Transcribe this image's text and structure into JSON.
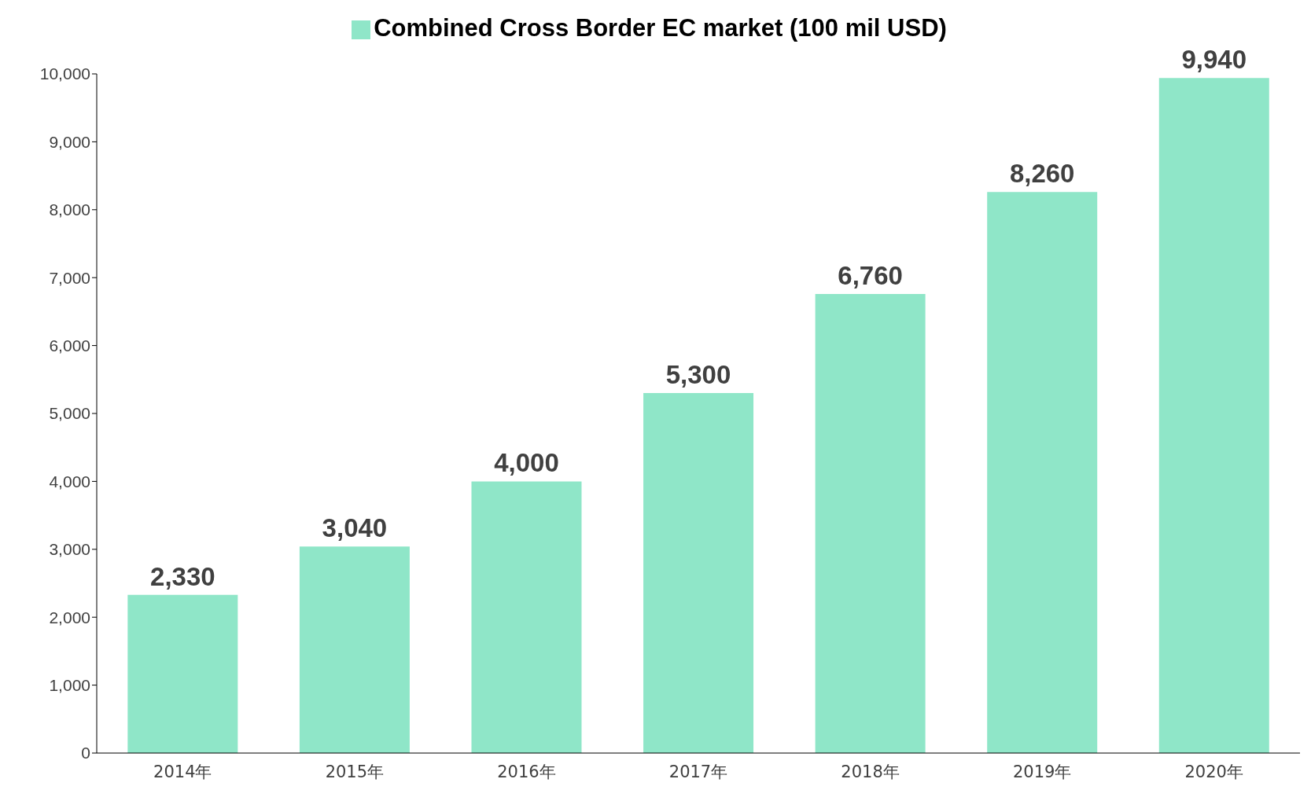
{
  "chart_data": {
    "type": "bar",
    "categories": [
      "2014年",
      "2015年",
      "2016年",
      "2017年",
      "2018年",
      "2019年",
      "2020年"
    ],
    "series": [
      {
        "name": "Combined Cross Border EC market (100 mil USD)",
        "color": "#8fe6c8",
        "values": [
          2330,
          3040,
          4000,
          5300,
          6760,
          8260,
          9940
        ],
        "value_labels": [
          "2,330",
          "3,040",
          "4,000",
          "5,300",
          "6,760",
          "8,260",
          "9,940"
        ]
      }
    ],
    "ylim": [
      0,
      10000
    ],
    "yticks": [
      {
        "value": 0,
        "label": "0"
      },
      {
        "value": 1000,
        "label": "1,000"
      },
      {
        "value": 2000,
        "label": "2,000"
      },
      {
        "value": 3000,
        "label": "3,000"
      },
      {
        "value": 4000,
        "label": "4,000"
      },
      {
        "value": 5000,
        "label": "5,000"
      },
      {
        "value": 6000,
        "label": "6,000"
      },
      {
        "value": 7000,
        "label": "7,000"
      },
      {
        "value": 8000,
        "label": "8,000"
      },
      {
        "value": 9000,
        "label": "9,000"
      },
      {
        "value": 10000,
        "label": "10,000"
      }
    ],
    "legend": "top",
    "grid": false
  }
}
